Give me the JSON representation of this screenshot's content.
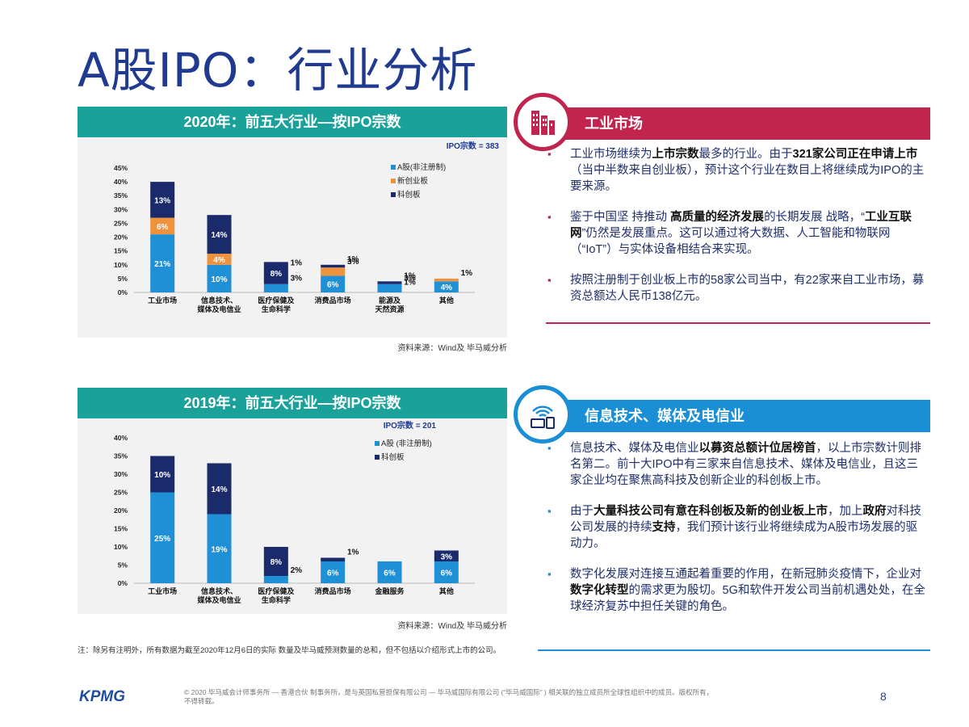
{
  "page": {
    "title": "A股IPO：行业分析",
    "note": "注：除另有注明外，所有数据为截至2020年12月6日的实际 数量及毕马威预测数量的总和，但不包括以介绍形式上市的公司。",
    "footer_logo": "KPMG",
    "footer_text_1": "© 2020 毕马威会计师事务所 — 香港合伙 制事务所，是与英国私营担保有限公司 — 毕马威国际有限公司 (“毕马威国际” ) 相关联的独立成员所全球性组织中的成员。版权所有，",
    "footer_text_2": "不得转载。",
    "page_number": "8"
  },
  "colors": {
    "teal": "#1aa29a",
    "light_blue": "#1f8fd6",
    "orange": "#f0923c",
    "navy": "#1b2a6b",
    "crimson": "#c0244f",
    "blue_panel": "#1a8fd6"
  },
  "chart_data": [
    {
      "type": "bar",
      "stacked": true,
      "title": "2020年：前五大行业—按IPO宗数",
      "annotation": "IPO宗数 = 383",
      "source": "资料来源：Wind及 毕马威分析",
      "categories": [
        "工业市场",
        "信息技术、媒体及电信业",
        "医疗保健及生命科学",
        "消费品市场",
        "能源及天然资源",
        "其他"
      ],
      "category_lines": [
        [
          "工业市场"
        ],
        [
          "信息技术、",
          "媒体及电信业"
        ],
        [
          "医疗保健及",
          "生命科学"
        ],
        [
          "消费品市场"
        ],
        [
          "能源及",
          "天然资源"
        ],
        [
          "其他"
        ]
      ],
      "yticks": [
        "0%",
        "5%",
        "10%",
        "15%",
        "20%",
        "25%",
        "30%",
        "35%",
        "40%",
        "45%"
      ],
      "ylim": [
        0,
        45
      ],
      "legend_position": "top-right",
      "series": [
        {
          "name": "A股(非注册制)",
          "color": "#1f8fd6",
          "values": [
            21,
            10,
            3,
            6,
            3,
            4
          ],
          "labels": [
            "21%",
            "10%",
            "3%",
            "6%",
            "3%",
            "4%"
          ]
        },
        {
          "name": "新创业板",
          "color": "#f0923c",
          "values": [
            6,
            4,
            0,
            3,
            0,
            1
          ],
          "labels": [
            "6%",
            "4%",
            "",
            "3%",
            "",
            "1%"
          ]
        },
        {
          "name": "科创板",
          "color": "#1b2a6b",
          "values": [
            13,
            14,
            8,
            1,
            1,
            0
          ],
          "labels": [
            "13%",
            "14%",
            "8%",
            "1%",
            "1%",
            ""
          ]
        }
      ],
      "extra_labels": [
        {
          "category": 2,
          "text": "1%"
        },
        {
          "category": 4,
          "text": "1%"
        }
      ]
    },
    {
      "type": "bar",
      "stacked": true,
      "title": "2019年：前五大行业—按IPO宗数",
      "annotation": "IPO宗数 = 201",
      "source": "资料来源：Wind及 毕马威分析",
      "categories": [
        "工业市场",
        "信息技术、媒体及电信业",
        "医疗保健及生命科学",
        "消费品市场",
        "金融服务",
        "其他"
      ],
      "category_lines": [
        [
          "工业市场"
        ],
        [
          "信息技术、",
          "媒体及电信业"
        ],
        [
          "医疗保健及",
          "生命科学"
        ],
        [
          "消费品市场"
        ],
        [
          "金融服务"
        ],
        [
          "其他"
        ]
      ],
      "yticks": [
        "0%",
        "5%",
        "10%",
        "15%",
        "20%",
        "25%",
        "30%",
        "35%",
        "40%"
      ],
      "ylim": [
        0,
        40
      ],
      "legend_position": "top-right",
      "series": [
        {
          "name": "A股 (非注册制)",
          "color": "#1f8fd6",
          "values": [
            25,
            19,
            2,
            6,
            6,
            6
          ],
          "labels": [
            "25%",
            "19%",
            "2%",
            "6%",
            "6%",
            "6%"
          ]
        },
        {
          "name": "科创板",
          "color": "#1b2a6b",
          "values": [
            10,
            14,
            8,
            1,
            0,
            3
          ],
          "labels": [
            "10%",
            "14%",
            "8%",
            "1%",
            "",
            "3%"
          ]
        }
      ],
      "extra_labels": []
    }
  ],
  "panel_industrial": {
    "heading": "工业市场",
    "bullets": [
      [
        {
          "t": "工业市场继续为"
        },
        {
          "t": "上市宗数",
          "b": true
        },
        {
          "t": "最多的行业。由于"
        },
        {
          "t": "321家公司正在申请上市",
          "b": true
        },
        {
          "t": "（当中半数来自创业板），预计这个行业在数目上将继续成为IPO的主要来源。"
        }
      ],
      [
        {
          "t": "鉴于中国坚 持推动 "
        },
        {
          "t": "高质量的经济发展",
          "b": true
        },
        {
          "t": "的长期发展 战略，“"
        },
        {
          "t": "工业互联网",
          "b": true
        },
        {
          "t": "”仍然是发展重点。这可以通过将大数据、人工智能和物联网（“IoT”）与实体设备相结合来实现。"
        }
      ],
      [
        {
          "t": "按照注册制于创业板上市的58家公司当中，有22家来自工业市场，募资总额达人民币138亿元。"
        }
      ]
    ]
  },
  "panel_tmt": {
    "heading": "信息技术、媒体及电信业",
    "bullets": [
      [
        {
          "t": "信息技术、媒体及电信业"
        },
        {
          "t": "以募资总额计位居榜首",
          "b": true
        },
        {
          "t": "，以上市宗数计则排名第二。前十大IPO中有三家来自信息技术、媒体及电信业，且这三家企业均在聚焦高科技及创新企业的科创板上市。"
        }
      ],
      [
        {
          "t": "由于"
        },
        {
          "t": "大量科技公司有意在科创板及新的创业板上市",
          "b": true
        },
        {
          "t": "，加上"
        },
        {
          "t": "政府",
          "b": true
        },
        {
          "t": "对科技公司发展的持续"
        },
        {
          "t": "支持",
          "b": true
        },
        {
          "t": "，我们预计该行业将继续成为A股市场发展的驱动力。"
        }
      ],
      [
        {
          "t": "数字化发展对连接互通起着重要的作用，在新冠肺炎疫情下，企业对"
        },
        {
          "t": "数字化转型",
          "b": true
        },
        {
          "t": "的需求更为殷切。5G和软件开发公司当前机遇处处，在全球经济复苏中担任关键的角色。"
        }
      ]
    ]
  }
}
